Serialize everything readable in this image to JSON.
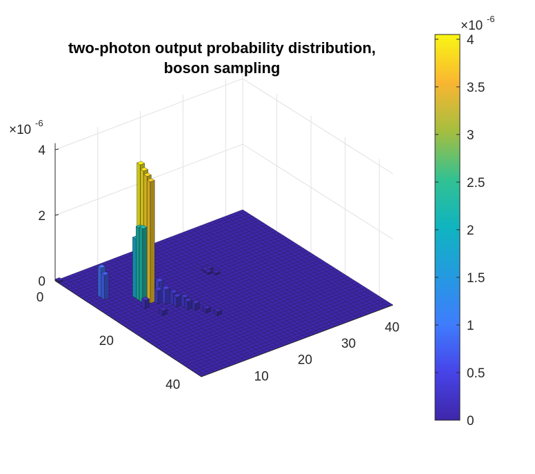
{
  "chart_data": {
    "type": "bar3",
    "title_lines": [
      "two-photon output probability distribution,",
      "boson sampling"
    ],
    "z_scale_label": "10",
    "z_scale_exponent": "-6",
    "z_ticks": [
      "0",
      "2",
      "4"
    ],
    "x_ticks": [
      "0",
      "20",
      "40"
    ],
    "y_ticks": [
      "10",
      "20",
      "30",
      "40"
    ],
    "xlim": [
      0,
      44
    ],
    "ylim": [
      0,
      44
    ],
    "zlim": [
      0,
      4.2
    ],
    "grid": true,
    "colormap": "parula",
    "colorbar": {
      "scale_label": "10",
      "scale_exponent": "-6",
      "ticks": [
        "0",
        "0.5",
        "1",
        "1.5",
        "2",
        "2.5",
        "3",
        "3.5",
        "4"
      ],
      "min": 0,
      "max": 4.05
    },
    "bars": [
      {
        "i": 1,
        "j": 1,
        "v": 0.05
      },
      {
        "i": 10,
        "j": 4,
        "v": 0.9
      },
      {
        "i": 11,
        "j": 4,
        "v": 0.75
      },
      {
        "i": 14,
        "j": 9,
        "v": 1.8
      },
      {
        "i": 15,
        "j": 9,
        "v": 2.2
      },
      {
        "i": 16,
        "j": 9,
        "v": 2.25
      },
      {
        "i": 14,
        "j": 10,
        "v": 4.02
      },
      {
        "i": 15,
        "j": 10,
        "v": 3.9
      },
      {
        "i": 16,
        "j": 10,
        "v": 3.8
      },
      {
        "i": 17,
        "j": 10,
        "v": 3.7
      },
      {
        "i": 15,
        "j": 11,
        "v": 0.6
      },
      {
        "i": 16,
        "j": 11,
        "v": 0.45
      },
      {
        "i": 17,
        "j": 12,
        "v": 0.55
      },
      {
        "i": 18,
        "j": 11,
        "v": 0.4
      },
      {
        "i": 19,
        "j": 12,
        "v": 0.45
      },
      {
        "i": 20,
        "j": 13,
        "v": 0.35
      },
      {
        "i": 21,
        "j": 13,
        "v": 0.3
      },
      {
        "i": 22,
        "j": 14,
        "v": 0.3
      },
      {
        "i": 23,
        "j": 14,
        "v": 0.25
      },
      {
        "i": 24,
        "j": 15,
        "v": 0.2
      },
      {
        "i": 18,
        "j": 8,
        "v": 0.25
      },
      {
        "i": 22,
        "j": 9,
        "v": 0.15
      },
      {
        "i": 26,
        "j": 16,
        "v": 0.12
      },
      {
        "i": 28,
        "j": 17,
        "v": 0.12
      },
      {
        "i": 14,
        "j": 25,
        "v": 0.06
      },
      {
        "i": 15,
        "j": 25,
        "v": 0.06
      },
      {
        "i": 14,
        "j": 26,
        "v": 0.05
      },
      {
        "i": 16,
        "j": 26,
        "v": 0.05
      }
    ]
  }
}
